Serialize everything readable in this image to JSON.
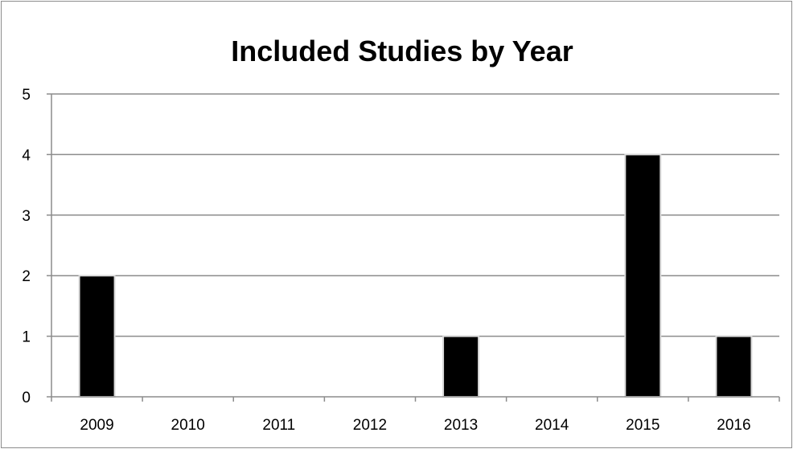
{
  "chart_data": {
    "type": "bar",
    "title": "Included Studies by Year",
    "xlabel": "",
    "ylabel": "",
    "categories": [
      "2009",
      "2010",
      "2011",
      "2012",
      "2013",
      "2014",
      "2015",
      "2016"
    ],
    "values": [
      2,
      0,
      0,
      0,
      1,
      0,
      4,
      1
    ],
    "ylim": [
      0,
      5
    ],
    "yticks": [
      0,
      1,
      2,
      3,
      4,
      5
    ],
    "grid": true,
    "legend": "none",
    "colors": {
      "bar": "#000000",
      "bar_outline": "#d9d9d9",
      "gridline": "#8c8c8c",
      "axis": "#8c8c8c",
      "background": "#ffffff"
    }
  }
}
